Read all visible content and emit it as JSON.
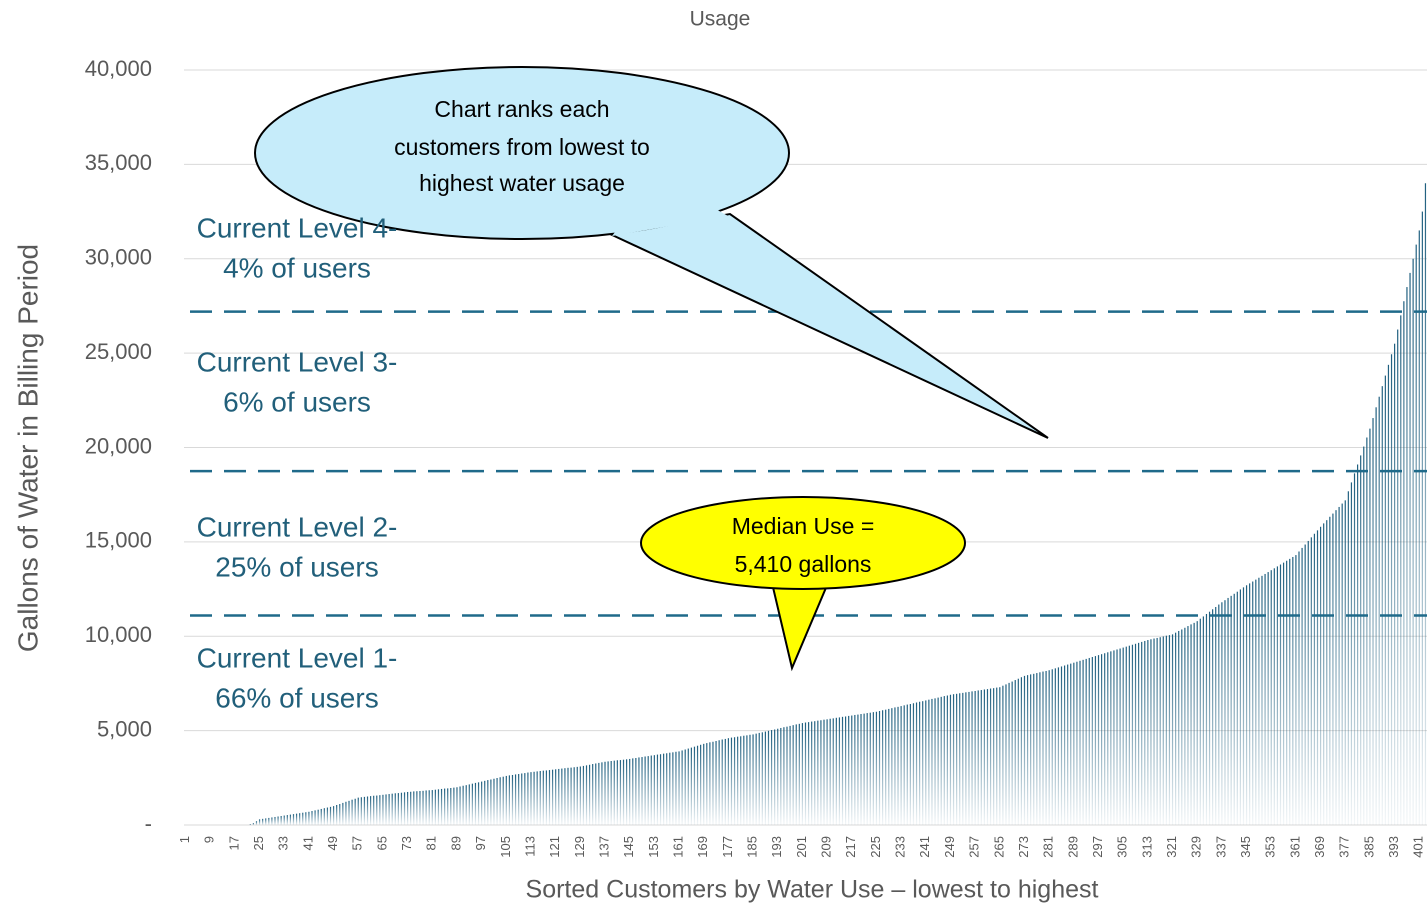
{
  "chart_data": {
    "type": "bar",
    "title": "Usage",
    "x_label": "Sorted Customers by Water Use – lowest to highest",
    "y_label": "Gallons of Water in Billing Period",
    "color": "#1f5f7f",
    "grid": true,
    "ylim": [
      0,
      40000
    ],
    "yticks": [
      {
        "value": 0,
        "label": "-"
      },
      {
        "value": 5000,
        "label": "5,000"
      },
      {
        "value": 10000,
        "label": "10,000"
      },
      {
        "value": 15000,
        "label": "15,000"
      },
      {
        "value": 20000,
        "label": "20,000"
      },
      {
        "value": 25000,
        "label": "25,000"
      },
      {
        "value": 30000,
        "label": "30,000"
      },
      {
        "value": 35000,
        "label": "35,000"
      },
      {
        "value": 40000,
        "label": "40,000"
      }
    ],
    "reference_lines": [
      {
        "value": 27200,
        "color": "#1f6a8a"
      },
      {
        "value": 18750,
        "color": "#1f6a8a"
      },
      {
        "value": 11100,
        "color": "#1f6a8a"
      }
    ],
    "level_labels": [
      {
        "lines": [
          "Current Level 4-",
          "4% of users"
        ]
      },
      {
        "lines": [
          "Current Level 3-",
          "6% of users"
        ]
      },
      {
        "lines": [
          "Current Level 2-",
          "25% of users"
        ]
      },
      {
        "lines": [
          "Current Level 1-",
          "66% of users"
        ]
      }
    ],
    "callouts": [
      {
        "lines": [
          "Chart ranks each",
          "customers from lowest to",
          "highest water usage"
        ]
      },
      {
        "lines": [
          "Median Use =",
          "5,410 gallons"
        ]
      }
    ],
    "categories": [
      1,
      null,
      null,
      null,
      null,
      null,
      null,
      null,
      9,
      null,
      null,
      null,
      null,
      null,
      null,
      null,
      17,
      null,
      null,
      null,
      null,
      null,
      null,
      null,
      25,
      null,
      null,
      null,
      null,
      null,
      null,
      null,
      33,
      null,
      null,
      null,
      null,
      null,
      null,
      null,
      41,
      null,
      null,
      null,
      null,
      null,
      null,
      null,
      49,
      null,
      null,
      null,
      null,
      null,
      null,
      null,
      57,
      null,
      null,
      null,
      null,
      null,
      null,
      null,
      65,
      null,
      null,
      null,
      null,
      null,
      null,
      null,
      73,
      null,
      null,
      null,
      null,
      null,
      null,
      null,
      81,
      null,
      null,
      null,
      null,
      null,
      null,
      null,
      89,
      null,
      null,
      null,
      null,
      null,
      null,
      null,
      97,
      null,
      null,
      null,
      null,
      null,
      null,
      null,
      105,
      null,
      null,
      null,
      null,
      null,
      null,
      null,
      113,
      null,
      null,
      null,
      null,
      null,
      null,
      null,
      121,
      null,
      null,
      null,
      null,
      null,
      null,
      null,
      129,
      null,
      null,
      null,
      null,
      null,
      null,
      null,
      137,
      null,
      null,
      null,
      null,
      null,
      null,
      null,
      145,
      null,
      null,
      null,
      null,
      null,
      null,
      null,
      153,
      null,
      null,
      null,
      null,
      null,
      null,
      null,
      161,
      null,
      null,
      null,
      null,
      null,
      null,
      null,
      169,
      null,
      null,
      null,
      null,
      null,
      null,
      null,
      177,
      null,
      null,
      null,
      null,
      null,
      null,
      null,
      185,
      null,
      null,
      null,
      null,
      null,
      null,
      null,
      193,
      null,
      null,
      null,
      null,
      null,
      null,
      null,
      201,
      null,
      null,
      null,
      null,
      null,
      null,
      null,
      209,
      null,
      null,
      null,
      null,
      null,
      null,
      null,
      217,
      null,
      null,
      null,
      null,
      null,
      null,
      null,
      225,
      null,
      null,
      null,
      null,
      null,
      null,
      null,
      233,
      null,
      null,
      null,
      null,
      null,
      null,
      null,
      241,
      null,
      null,
      null,
      null,
      null,
      null,
      null,
      249,
      null,
      null,
      null,
      null,
      null,
      null,
      null,
      257,
      null,
      null,
      null,
      null,
      null,
      null,
      null,
      265,
      null,
      null,
      null,
      null,
      null,
      null,
      null,
      273,
      null,
      null,
      null,
      null,
      null,
      null,
      null,
      281,
      null,
      null,
      null,
      null,
      null,
      null,
      null,
      289,
      null,
      null,
      null,
      null,
      null,
      null,
      null,
      297,
      null,
      null,
      null,
      null,
      null,
      null,
      null,
      305,
      null,
      null,
      null,
      null,
      null,
      null,
      null,
      313,
      null,
      null,
      null,
      null,
      null,
      null,
      null,
      321,
      null,
      null,
      null,
      null,
      null,
      null,
      null,
      329,
      null,
      null,
      null,
      null,
      null,
      null,
      null,
      337,
      null,
      null,
      null,
      null,
      null,
      null,
      null,
      345,
      null,
      null,
      null,
      null,
      null,
      null,
      null,
      353,
      null,
      null,
      null,
      null,
      null,
      null,
      null,
      361,
      null,
      null,
      null,
      null,
      null,
      null,
      null,
      369,
      null,
      null,
      null,
      null,
      null,
      null,
      null,
      377,
      null,
      null,
      null,
      null,
      null,
      null,
      null,
      385,
      null,
      null,
      null,
      null,
      null,
      null,
      null,
      393,
      null,
      null,
      null,
      null,
      null,
      null,
      null,
      401,
      null,
      null
    ],
    "values": [
      0,
      0,
      0,
      0,
      0,
      0,
      0,
      0,
      0,
      0,
      0,
      0,
      0,
      0,
      0,
      0,
      0,
      0,
      0,
      0,
      0,
      50,
      100,
      200,
      300,
      325,
      350,
      375,
      400,
      425,
      450,
      475,
      500,
      525,
      550,
      575,
      600,
      625,
      650,
      675,
      700,
      740,
      775,
      810,
      850,
      890,
      925,
      960,
      1000,
      1060,
      1110,
      1170,
      1230,
      1280,
      1340,
      1390,
      1450,
      1470,
      1490,
      1510,
      1530,
      1550,
      1560,
      1580,
      1600,
      1620,
      1640,
      1660,
      1680,
      1690,
      1710,
      1730,
      1750,
      1760,
      1780,
      1790,
      1800,
      1810,
      1830,
      1840,
      1850,
      1870,
      1890,
      1910,
      1930,
      1940,
      1960,
      1980,
      2000,
      2040,
      2080,
      2110,
      2150,
      2190,
      2230,
      2260,
      2300,
      2340,
      2380,
      2410,
      2450,
      2490,
      2530,
      2560,
      2600,
      2630,
      2650,
      2680,
      2700,
      2730,
      2750,
      2780,
      2800,
      2820,
      2840,
      2860,
      2880,
      2890,
      2910,
      2930,
      2950,
      2970,
      2990,
      3010,
      3030,
      3040,
      3060,
      3080,
      3100,
      3130,
      3160,
      3190,
      3230,
      3260,
      3290,
      3320,
      3350,
      3370,
      3390,
      3410,
      3430,
      3440,
      3460,
      3480,
      3500,
      3530,
      3550,
      3580,
      3600,
      3630,
      3650,
      3680,
      3700,
      3730,
      3750,
      3780,
      3800,
      3830,
      3850,
      3880,
      3900,
      3950,
      4000,
      4050,
      4100,
      4150,
      4200,
      4250,
      4300,
      4340,
      4380,
      4410,
      4450,
      4490,
      4530,
      4560,
      4600,
      4630,
      4650,
      4680,
      4700,
      4730,
      4750,
      4780,
      4800,
      4840,
      4880,
      4910,
      4950,
      4990,
      5030,
      5060,
      5100,
      5140,
      5180,
      5210,
      5250,
      5290,
      5330,
      5360,
      5400,
      5430,
      5450,
      5480,
      5500,
      5530,
      5550,
      5580,
      5600,
      5630,
      5650,
      5680,
      5700,
      5730,
      5750,
      5780,
      5800,
      5830,
      5850,
      5880,
      5900,
      5930,
      5950,
      5980,
      6000,
      6040,
      6080,
      6110,
      6150,
      6190,
      6230,
      6260,
      6300,
      6340,
      6380,
      6410,
      6450,
      6490,
      6530,
      6560,
      6600,
      6640,
      6680,
      6710,
      6750,
      6790,
      6830,
      6860,
      6900,
      6930,
      6950,
      6980,
      7000,
      7030,
      7050,
      7080,
      7100,
      7130,
      7150,
      7180,
      7200,
      7230,
      7250,
      7280,
      7300,
      7380,
      7450,
      7530,
      7600,
      7680,
      7750,
      7830,
      7900,
      7940,
      7980,
      8010,
      8050,
      8090,
      8130,
      8160,
      8200,
      8250,
      8300,
      8350,
      8400,
      8450,
      8500,
      8550,
      8600,
      8650,
      8700,
      8750,
      8800,
      8850,
      8900,
      8950,
      9000,
      9050,
      9100,
      9150,
      9200,
      9250,
      9300,
      9350,
      9400,
      9450,
      9500,
      9550,
      9600,
      9650,
      9700,
      9750,
      9800,
      9840,
      9880,
      9910,
      9950,
      9990,
      10030,
      10060,
      10100,
      10190,
      10280,
      10360,
      10450,
      10540,
      10630,
      10710,
      10800,
      10930,
      11050,
      11180,
      11300,
      11430,
      11550,
      11680,
      11800,
      11910,
      12030,
      12140,
      12250,
      12360,
      12480,
      12590,
      12700,
      12800,
      12900,
      13000,
      13100,
      13200,
      13300,
      13400,
      13500,
      13600,
      13700,
      13800,
      13900,
      14000,
      14100,
      14200,
      14300,
      14490,
      14680,
      14860,
      15050,
      15240,
      15430,
      15610,
      15800,
      15980,
      16150,
      16330,
      16500,
      16680,
      16850,
      17030,
      17200,
      17680,
      18150,
      18630,
      19100,
      19580,
      20050,
      20530,
      21000,
      21560,
      22130,
      22690,
      23250,
      23810,
      24380,
      24940,
      25500,
      26250,
      27000,
      27750,
      28500,
      29250,
      30000,
      30750,
      31500,
      32500,
      34000
    ]
  }
}
